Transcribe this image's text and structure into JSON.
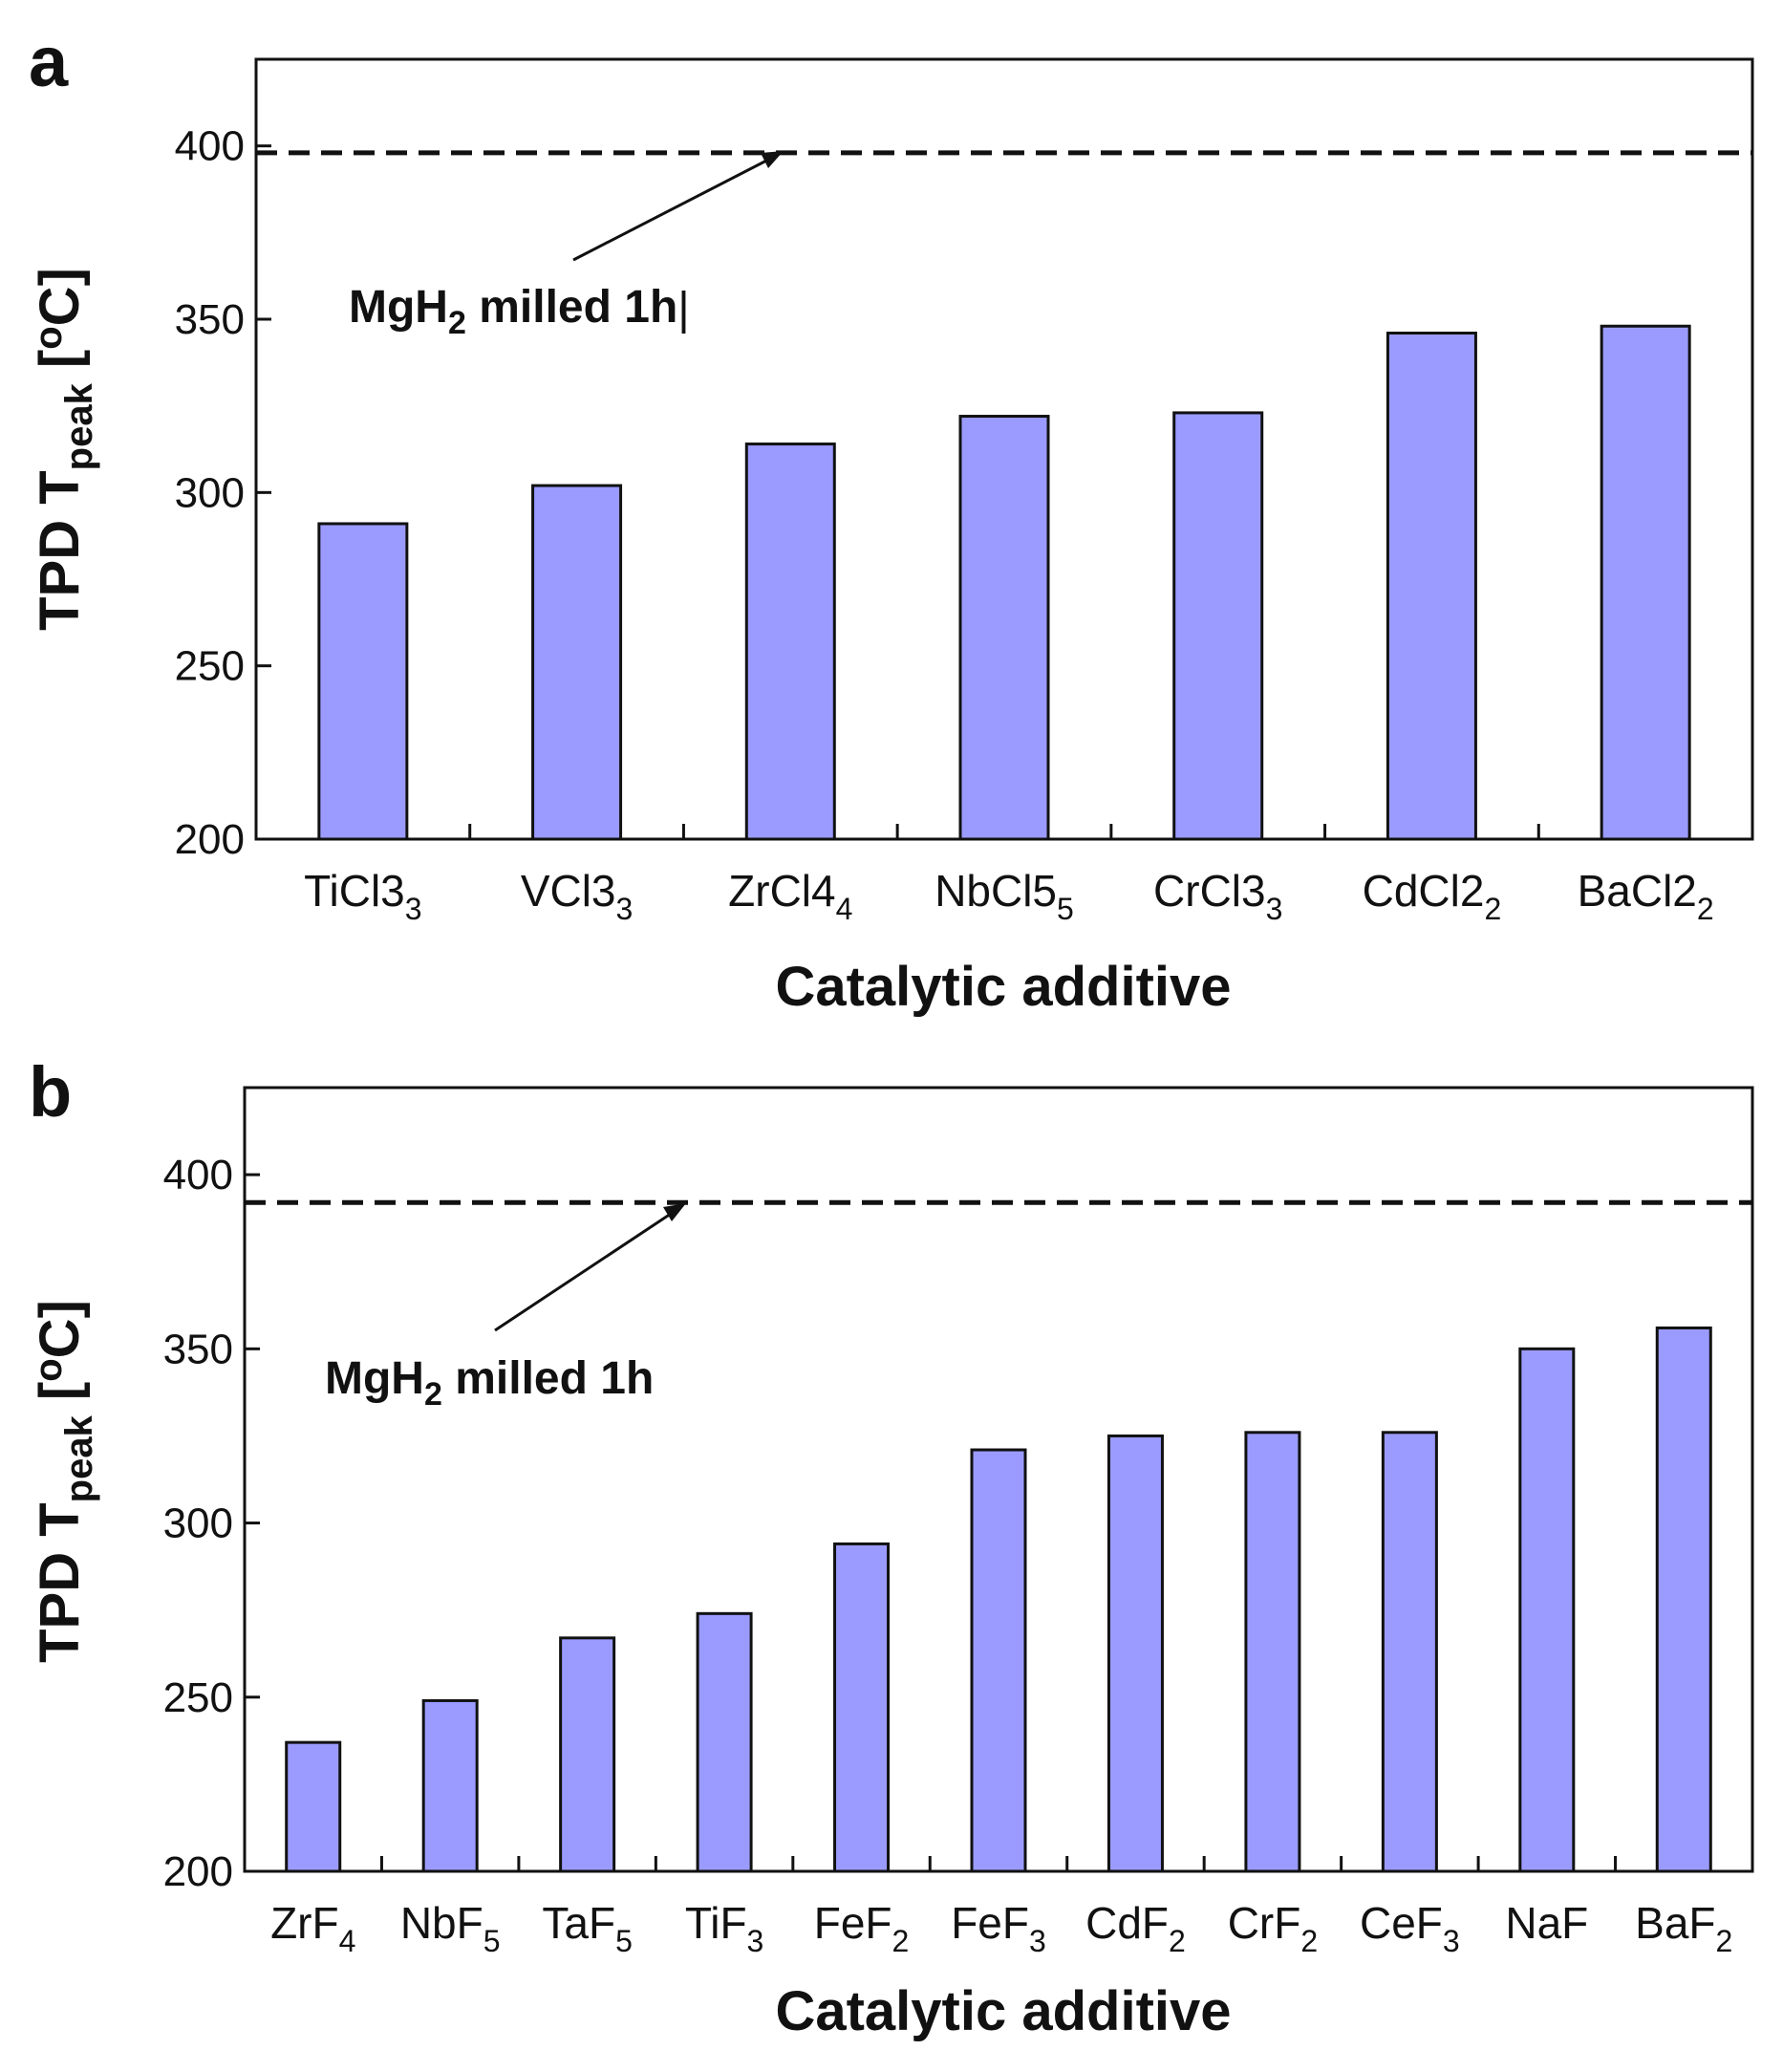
{
  "chart_data": [
    {
      "panel": "a",
      "type": "bar",
      "xlabel": "Catalytic additive",
      "ylabel": {
        "main": "TPD T",
        "sub": "peak",
        "unit_pre": " [",
        "unit_sup": "o",
        "unit_post": "C]"
      },
      "ylim": [
        200,
        425
      ],
      "yticks": [
        200,
        250,
        300,
        350,
        400
      ],
      "categories": [
        {
          "base": "TiCl3",
          "sub": "3"
        },
        {
          "base": "VCl3",
          "sub": "3"
        },
        {
          "base": "ZrCl4",
          "sub": "4"
        },
        {
          "base": "NbCl5",
          "sub": "5"
        },
        {
          "base": "CrCl3",
          "sub": "3"
        },
        {
          "base": "CdCl2",
          "sub": "2"
        },
        {
          "base": "BaCl2",
          "sub": "2"
        }
      ],
      "values": [
        291,
        302,
        314,
        322,
        323,
        346,
        348
      ],
      "reference_line": {
        "value": 398,
        "style": "dashed"
      },
      "annotation": {
        "pre": "MgH",
        "sub": "2",
        "post": " milled 1h",
        "cursor": "|"
      },
      "bar_color": "#9b9bff"
    },
    {
      "panel": "b",
      "type": "bar",
      "xlabel": "Catalytic additive",
      "ylabel": {
        "main": "TPD T",
        "sub": "peak",
        "unit_pre": " [",
        "unit_sup": "o",
        "unit_post": "C]"
      },
      "ylim": [
        200,
        425
      ],
      "yticks": [
        200,
        250,
        300,
        350,
        400
      ],
      "categories": [
        {
          "base": "ZrF",
          "sub": "4"
        },
        {
          "base": "NbF",
          "sub": "5"
        },
        {
          "base": "TaF",
          "sub": "5"
        },
        {
          "base": "TiF",
          "sub": "3"
        },
        {
          "base": "FeF",
          "sub": "2"
        },
        {
          "base": "FeF",
          "sub": "3"
        },
        {
          "base": "CdF",
          "sub": "2"
        },
        {
          "base": "CrF",
          "sub": "2"
        },
        {
          "base": "CeF",
          "sub": "3"
        },
        {
          "base": "NaF",
          "sub": ""
        },
        {
          "base": "BaF",
          "sub": "2"
        }
      ],
      "values": [
        237,
        249,
        267,
        274,
        294,
        321,
        325,
        326,
        326,
        350,
        356
      ],
      "reference_line": {
        "value": 392,
        "style": "dashed"
      },
      "annotation": {
        "pre": "MgH",
        "sub": "2",
        "post": " milled 1h",
        "cursor": ""
      },
      "bar_color": "#9b9bff"
    }
  ]
}
